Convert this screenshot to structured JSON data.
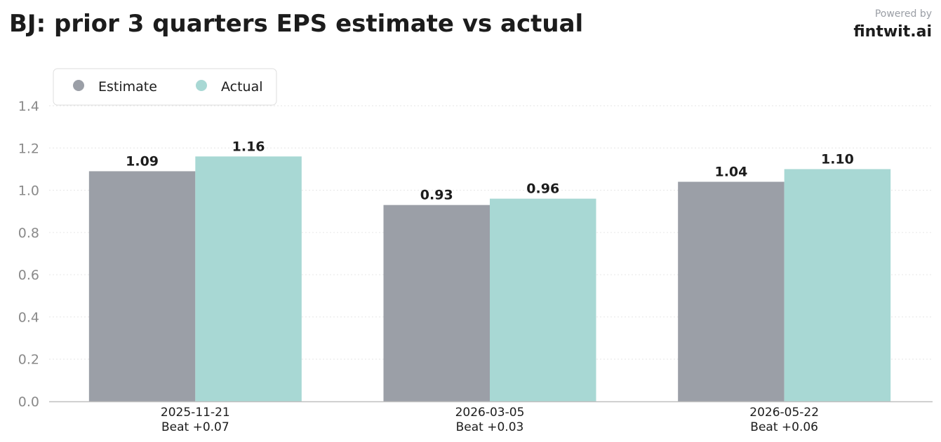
{
  "header": {
    "title": "BJ: prior 3 quarters EPS estimate vs actual",
    "powered_by": "Powered by",
    "brand": "fintwit.ai"
  },
  "chart_data": {
    "type": "bar",
    "categories": [
      "2025-11-21",
      "2026-03-05",
      "2026-05-22"
    ],
    "category_sublabels": [
      "Beat +0.07",
      "Beat +0.03",
      "Beat +0.06"
    ],
    "series": [
      {
        "name": "Estimate",
        "values": [
          1.09,
          0.93,
          1.04
        ],
        "labels": [
          "1.09",
          "0.93",
          "1.04"
        ],
        "color": "#9b9fa7"
      },
      {
        "name": "Actual",
        "values": [
          1.16,
          0.96,
          1.1
        ],
        "labels": [
          "1.16",
          "0.96",
          "1.10"
        ],
        "color": "#a8d8d4"
      }
    ],
    "ylim": [
      0,
      1.4
    ],
    "yticks": [
      0.0,
      0.2,
      0.4,
      0.6,
      0.8,
      1.0,
      1.2,
      1.4
    ],
    "ytick_labels": [
      "0.0",
      "0.2",
      "0.4",
      "0.6",
      "0.8",
      "1.0",
      "1.2",
      "1.4"
    ],
    "grid": true,
    "legend_position": "top-left"
  }
}
